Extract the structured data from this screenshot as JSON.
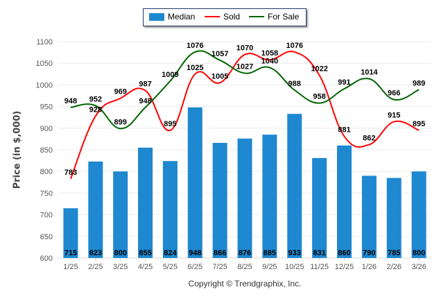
{
  "chart_data": {
    "type": "bar",
    "title": "",
    "xlabel": "",
    "ylabel": "Price (in $,000)",
    "ylim": [
      600,
      1100
    ],
    "yticks": [
      600,
      650,
      700,
      750,
      800,
      850,
      900,
      950,
      1000,
      1050,
      1100
    ],
    "grid": true,
    "legend_position": "top-center",
    "categories": [
      "1/25",
      "2/25",
      "3/25",
      "4/25",
      "5/25",
      "6/25",
      "7/25",
      "8/25",
      "9/25",
      "10/25",
      "11/25",
      "12/25",
      "1/26",
      "2/26",
      "3/26"
    ],
    "series": [
      {
        "name": "Median",
        "kind": "bar",
        "color": "#1e88d0",
        "values": [
          715,
          823,
          800,
          855,
          824,
          948,
          866,
          876,
          885,
          933,
          831,
          860,
          790,
          785,
          800
        ]
      },
      {
        "name": "Sold",
        "kind": "line",
        "color": "#ff0000",
        "values": [
          783,
          928,
          969,
          987,
          895,
          1025,
          1005,
          1070,
          1058,
          1076,
          1022,
          881,
          862,
          915,
          895
        ]
      },
      {
        "name": "For Sale",
        "kind": "line",
        "color": "#006400",
        "values": [
          948,
          952,
          899,
          948,
          1009,
          1076,
          1057,
          1027,
          1040,
          988,
          958,
          991,
          1014,
          966,
          989
        ]
      }
    ]
  },
  "legend": {
    "median": "Median",
    "sold": "Sold",
    "for_sale": "For Sale"
  },
  "footer": {
    "copyright": "Copyright © Trendgraphix, Inc."
  }
}
